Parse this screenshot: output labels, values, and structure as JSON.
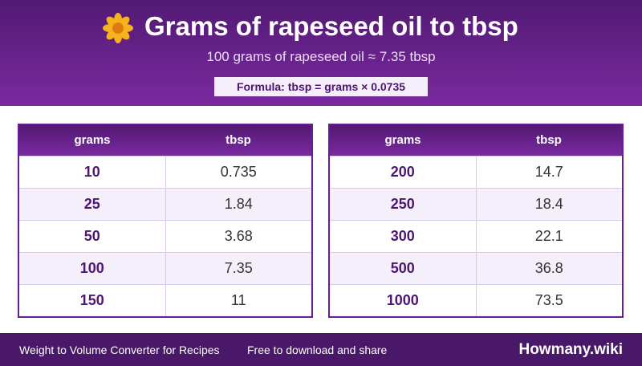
{
  "header": {
    "title": "Grams of rapeseed oil to tbsp",
    "subtitle": "100 grams of rapeseed oil ≈ 7.35 tbsp",
    "formula": "Formula: tbsp = grams × 0.0735"
  },
  "tables": [
    {
      "columns": [
        "grams",
        "tbsp"
      ],
      "rows": [
        [
          "10",
          "0.735"
        ],
        [
          "25",
          "1.84"
        ],
        [
          "50",
          "3.68"
        ],
        [
          "100",
          "7.35"
        ],
        [
          "150",
          "11"
        ]
      ]
    },
    {
      "columns": [
        "grams",
        "tbsp"
      ],
      "rows": [
        [
          "200",
          "14.7"
        ],
        [
          "250",
          "18.4"
        ],
        [
          "300",
          "22.1"
        ],
        [
          "500",
          "36.8"
        ],
        [
          "1000",
          "73.5"
        ]
      ]
    }
  ],
  "footer": {
    "left": "Weight to Volume Converter for Recipes",
    "middle": "Free to download and share",
    "brand": "Howmany.wiki"
  }
}
